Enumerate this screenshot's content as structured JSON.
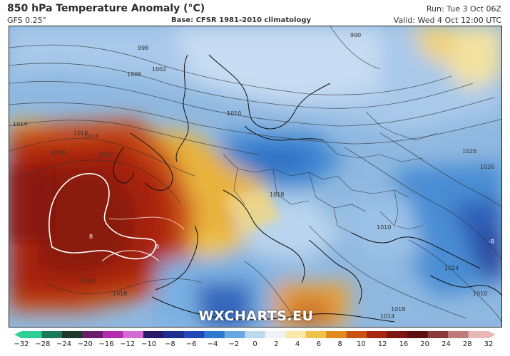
{
  "header": {
    "title": "850 hPa Temperature Anomaly (°C)",
    "model": "GFS 0.25°",
    "base": "Base: CFSR 1981-2010 climatology",
    "run": "Run: Tue 3 Oct 06Z",
    "valid": "Valid: Wed 4 Oct 12:00 UTC"
  },
  "watermark": "WXCHARTS.EU",
  "map": {
    "region": "Europe",
    "isobar_labels": [
      "998",
      "1002",
      "1006",
      "1010",
      "1014",
      "1018",
      "1022",
      "1026",
      "1018",
      "1014",
      "1018",
      "1014",
      "1018",
      "1010",
      "1018",
      "990",
      "1014",
      "1026",
      "1010",
      "1014"
    ],
    "contour_labels": [
      "8",
      "8",
      "-8"
    ]
  },
  "colorbar": {
    "ticks": [
      "−32",
      "−28",
      "−24",
      "−20",
      "−16",
      "−12",
      "−10",
      "−8",
      "−6",
      "−4",
      "−2",
      "0",
      "2",
      "4",
      "6",
      "8",
      "10",
      "12",
      "16",
      "20",
      "24",
      "28",
      "32"
    ],
    "colors": [
      "#2fcf96",
      "#1a7a5a",
      "#1f3a2a",
      "#6a1f6a",
      "#b32cb0",
      "#d46ad4",
      "#2a1a6a",
      "#1d2f8f",
      "#2248b8",
      "#2f78cf",
      "#68a8e0",
      "#bcd9f0",
      "#eef3f7",
      "#f6e9a8",
      "#efc24a",
      "#e08a1f",
      "#c95214",
      "#a8250f",
      "#7d160f",
      "#5e1010",
      "#8a3a3a",
      "#c07a7a",
      "#e8b8b8"
    ]
  }
}
